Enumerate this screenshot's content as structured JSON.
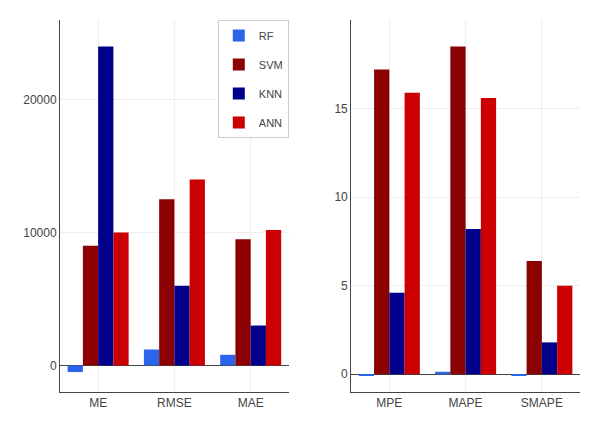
{
  "chart_data": [
    {
      "type": "bar",
      "categories": [
        "ME",
        "RMSE",
        "MAE"
      ],
      "series": [
        {
          "name": "RF",
          "color": "#2B65EC",
          "values": [
            -500,
            1200,
            800
          ]
        },
        {
          "name": "SVM",
          "color": "#8B0000",
          "values": [
            9000,
            12500,
            9500
          ]
        },
        {
          "name": "KNN",
          "color": "#00008B",
          "values": [
            24000,
            6000,
            3000
          ]
        },
        {
          "name": "ANN",
          "color": "#CC0000",
          "values": [
            10000,
            14000,
            10200
          ]
        }
      ],
      "ylim": [
        -2000,
        26000
      ],
      "yticks": [
        0,
        10000,
        20000
      ],
      "grid": true,
      "legend": "upper right"
    },
    {
      "type": "bar",
      "categories": [
        "MPE",
        "MAPE",
        "SMAPE"
      ],
      "series": [
        {
          "name": "RF",
          "color": "#2B65EC",
          "values": [
            -0.08,
            0.15,
            -0.08
          ]
        },
        {
          "name": "SVM",
          "color": "#8B0000",
          "values": [
            17.2,
            18.5,
            6.4
          ]
        },
        {
          "name": "KNN",
          "color": "#00008B",
          "values": [
            4.6,
            8.2,
            1.8
          ]
        },
        {
          "name": "ANN",
          "color": "#CC0000",
          "values": [
            15.9,
            15.6,
            5.0
          ]
        }
      ],
      "ylim": [
        -1,
        20
      ],
      "yticks": [
        0,
        5,
        10,
        15
      ],
      "grid": true
    }
  ]
}
